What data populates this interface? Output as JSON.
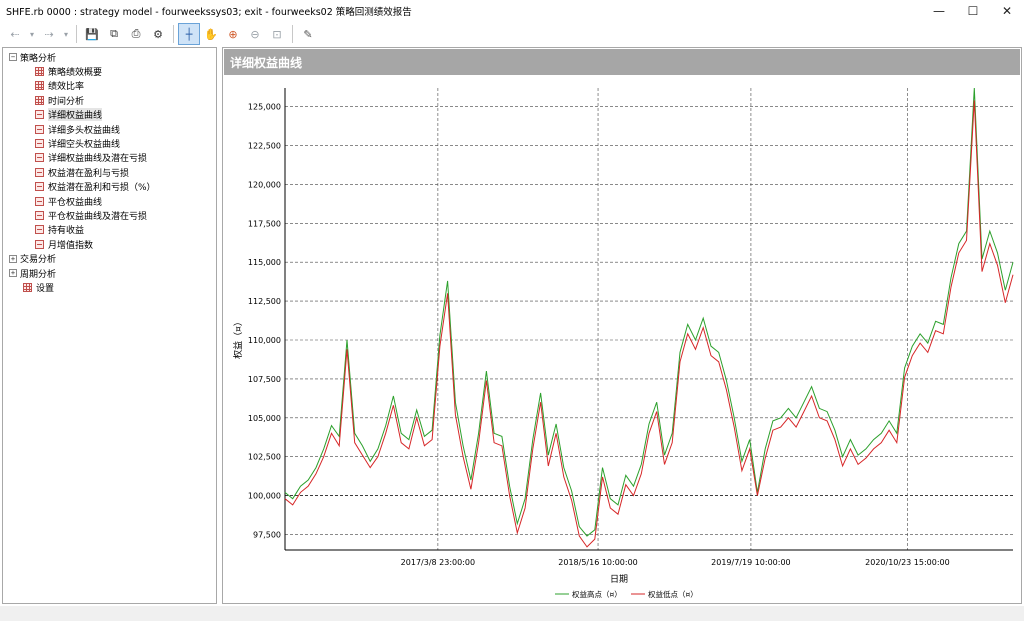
{
  "window": {
    "title": "SHFE.rb 0000 : strategy model - fourweekssys03; exit - fourweeks02 策略回测绩效报告",
    "minimize_glyph": "—",
    "maximize_glyph": "☐",
    "close_glyph": "✕"
  },
  "toolbar": {
    "back_glyph": "⇠",
    "dropdown_glyph": "▾",
    "forward_glyph": "⇢",
    "save_glyph": "💾",
    "copy_glyph": "⧉",
    "print_glyph": "⎙",
    "settings_glyph": "⚙",
    "crosshair_glyph": "┼",
    "pan_glyph": "✋",
    "zoom_in_glyph": "⊕",
    "zoom_out_glyph": "⊖",
    "zoom_reset_glyph": "⊡",
    "export_glyph": "✎",
    "icons": [
      "back-icon",
      "dropdown-icon",
      "forward-icon",
      "save-icon",
      "copy-icon",
      "print-icon",
      "settings-icon",
      "crosshair-icon",
      "pan-icon",
      "zoom-in-icon",
      "zoom-out-icon",
      "zoom-reset-icon",
      "export-icon"
    ]
  },
  "sidebar": {
    "expanded_glyph": "−",
    "collapsed_glyph": "+",
    "root": {
      "label": "策略分析"
    },
    "items": [
      {
        "label": "策略绩效概要"
      },
      {
        "label": "绩效比率"
      },
      {
        "label": "时间分析"
      },
      {
        "label": "详细权益曲线"
      },
      {
        "label": "详细多头权益曲线"
      },
      {
        "label": "详细空头权益曲线"
      },
      {
        "label": "详细权益曲线及潜在亏损"
      },
      {
        "label": "权益潜在盈利与亏损"
      },
      {
        "label": "权益潜在盈利和亏损（%）"
      },
      {
        "label": "平仓权益曲线"
      },
      {
        "label": "平仓权益曲线及潜在亏损"
      },
      {
        "label": "持有收益"
      },
      {
        "label": "月增值指数"
      }
    ],
    "others": [
      {
        "label": "交易分析"
      },
      {
        "label": "周期分析"
      },
      {
        "label": "设置"
      }
    ]
  },
  "main": {
    "header": "详细权益曲线"
  },
  "chart_data": {
    "type": "line",
    "ylabel": "权益（¤）",
    "xlabel": "日期",
    "ylim": [
      96500,
      126200
    ],
    "y_ticks": [
      97500,
      100000,
      102500,
      105000,
      107500,
      110000,
      112500,
      115000,
      117500,
      120000,
      122500,
      125000
    ],
    "y_tick_labels": [
      "97,500",
      "100,000",
      "102,500",
      "105,000",
      "107,500",
      "110,000",
      "112,500",
      "115,000",
      "117,500",
      "120,000",
      "122,500",
      "125,000"
    ],
    "x_tick_labels": [
      "2017/3/8 23:00:00",
      "2018/5/16 10:00:00",
      "2019/7/19 10:00:00",
      "2020/10/23 15:00:00"
    ],
    "x_tick_positions": [
      0.21,
      0.43,
      0.64,
      0.855
    ],
    "baseline": 100000,
    "grid": true,
    "legend_position": "bottom",
    "series": [
      {
        "name": "权益高点（¤）",
        "color": "#2ca02c",
        "values": [
          100200,
          99800,
          100600,
          101000,
          101800,
          103000,
          104500,
          103800,
          110000,
          104000,
          103200,
          102200,
          103000,
          104500,
          106400,
          104000,
          103600,
          105500,
          103800,
          104200,
          110300,
          113800,
          106000,
          103200,
          101000,
          104000,
          108000,
          104000,
          103800,
          100600,
          98200,
          99800,
          103600,
          106600,
          102600,
          104600,
          101800,
          100300,
          98000,
          97400,
          97800,
          101800,
          99800,
          99400,
          101300,
          100600,
          102000,
          104600,
          106000,
          102600,
          104000,
          109200,
          111000,
          110000,
          111400,
          109600,
          109200,
          107400,
          105000,
          102200,
          103600,
          100200,
          103000,
          104800,
          105000,
          105600,
          105000,
          106000,
          107000,
          105600,
          105400,
          104200,
          102500,
          103600,
          102600,
          103000,
          103600,
          104000,
          104800,
          104000,
          108200,
          109600,
          110400,
          109800,
          111200,
          111000,
          114000,
          116200,
          117000,
          126200,
          115200,
          117000,
          115600,
          113200,
          115000
        ]
      },
      {
        "name": "权益低点（¤）",
        "color": "#d62728",
        "values": [
          99800,
          99400,
          100200,
          100600,
          101400,
          102500,
          104000,
          103200,
          109400,
          103400,
          102600,
          101800,
          102500,
          104000,
          105800,
          103400,
          103000,
          105000,
          103200,
          103600,
          109600,
          113000,
          105200,
          102500,
          100400,
          103400,
          107400,
          103400,
          103200,
          100000,
          97600,
          99200,
          103000,
          106000,
          101900,
          104000,
          101200,
          99700,
          97400,
          96700,
          97200,
          101200,
          99200,
          98800,
          100700,
          100000,
          101400,
          104000,
          105400,
          102000,
          103400,
          108600,
          110400,
          109400,
          110800,
          109000,
          108600,
          106800,
          104400,
          101600,
          103000,
          100000,
          102400,
          104200,
          104400,
          105000,
          104400,
          105400,
          106400,
          105000,
          104800,
          103600,
          101900,
          103000,
          102000,
          102400,
          103000,
          103400,
          104200,
          103400,
          107600,
          109000,
          109800,
          109200,
          110600,
          110400,
          113400,
          115600,
          116400,
          125400,
          114400,
          116200,
          114800,
          112400,
          114200
        ]
      }
    ]
  }
}
